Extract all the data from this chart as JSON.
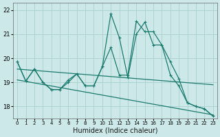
{
  "xlabel": "Humidex (Indice chaleur)",
  "bg_color": "#cce8e8",
  "grid_color": "#aad0d0",
  "line_color": "#1a7a6e",
  "xlim": [
    -0.5,
    23.5
  ],
  "ylim": [
    17.5,
    22.3
  ],
  "xticks": [
    0,
    1,
    2,
    3,
    4,
    5,
    6,
    7,
    8,
    9,
    10,
    11,
    12,
    13,
    14,
    15,
    16,
    17,
    18,
    19,
    20,
    21,
    22,
    23
  ],
  "yticks": [
    18,
    19,
    20,
    21,
    22
  ],
  "curve1_x": [
    0,
    1,
    2,
    3,
    4,
    5,
    6,
    7,
    8,
    9,
    10,
    11,
    12,
    13,
    14,
    15,
    16,
    17,
    18,
    19,
    20,
    21,
    22,
    23
  ],
  "curve1_y": [
    19.85,
    19.05,
    19.55,
    19.0,
    18.7,
    18.7,
    19.0,
    19.35,
    18.85,
    18.85,
    19.65,
    21.85,
    20.85,
    19.2,
    21.0,
    21.5,
    20.55,
    20.55,
    19.3,
    18.85,
    18.15,
    18.0,
    17.9,
    17.6
  ],
  "curve2_x": [
    0,
    1,
    2,
    3,
    4,
    5,
    6,
    7,
    8,
    9,
    10,
    11,
    12,
    13,
    14,
    15,
    16,
    17,
    18,
    19,
    20,
    21,
    22,
    23
  ],
  "curve2_y": [
    19.85,
    19.05,
    19.55,
    19.0,
    18.7,
    18.7,
    19.1,
    19.35,
    18.85,
    18.85,
    19.65,
    20.45,
    19.3,
    19.3,
    21.55,
    21.1,
    21.1,
    20.55,
    19.85,
    19.15,
    18.15,
    18.0,
    17.9,
    17.6
  ],
  "trend1_x": [
    0,
    23
  ],
  "trend1_y": [
    19.55,
    18.9
  ],
  "trend2_x": [
    0,
    23
  ],
  "trend2_y": [
    19.1,
    17.65
  ]
}
